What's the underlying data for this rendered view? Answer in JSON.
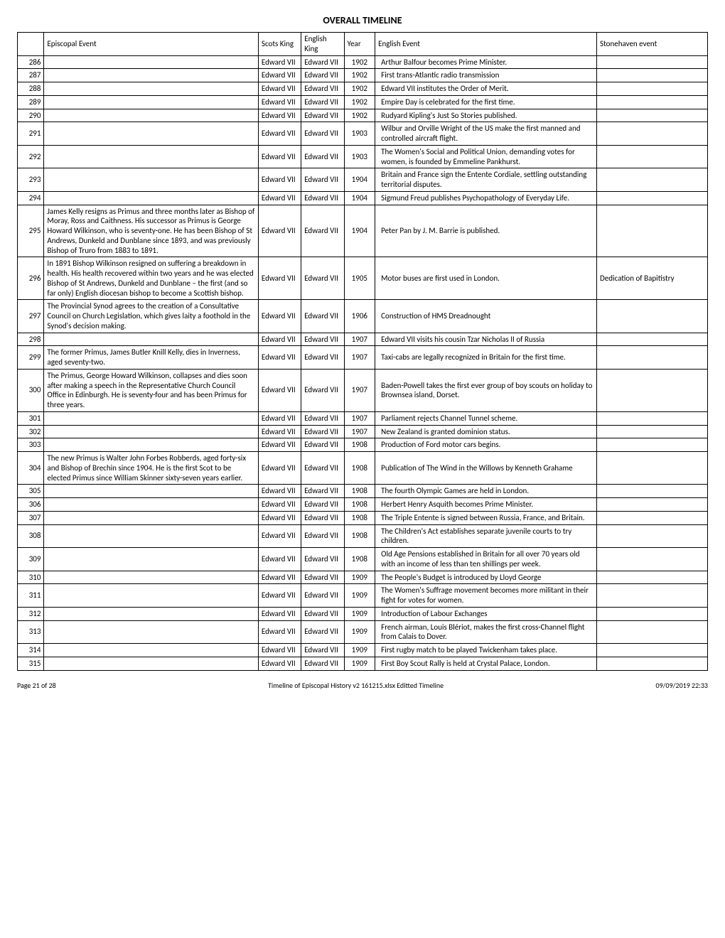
{
  "title": "OVERALL TIMELINE",
  "headers": {
    "idx": "",
    "episcopal": "Episcopal Event",
    "scots_king": "Scots King",
    "english_king": "English King",
    "year": "Year",
    "english_event": "English Event",
    "stonehaven": "Stonehaven event"
  },
  "rows": [
    {
      "n": "286",
      "ep": "",
      "sk": "Edward VII",
      "ek": "Edward VII",
      "yr": "1902",
      "ev": "Arthur Balfour becomes Prime Minister.",
      "st": ""
    },
    {
      "n": "287",
      "ep": "",
      "sk": "Edward VII",
      "ek": "Edward VII",
      "yr": "1902",
      "ev": "First trans-Atlantic radio transmission",
      "st": ""
    },
    {
      "n": "288",
      "ep": "",
      "sk": "Edward VII",
      "ek": "Edward VII",
      "yr": "1902",
      "ev": "Edward VII institutes the Order of Merit.",
      "st": ""
    },
    {
      "n": "289",
      "ep": "",
      "sk": "Edward VII",
      "ek": "Edward VII",
      "yr": "1902",
      "ev": "Empire Day is celebrated for the first time.",
      "st": ""
    },
    {
      "n": "290",
      "ep": "",
      "sk": "Edward VII",
      "ek": "Edward VII",
      "yr": "1902",
      "ev": "Rudyard Kipling's Just So Stories published.",
      "st": ""
    },
    {
      "n": "291",
      "ep": "",
      "sk": "Edward VII",
      "ek": "Edward VII",
      "yr": "1903",
      "ev": "Wilbur and Orville Wright of the US make the first manned and controlled aircraft flight.",
      "st": ""
    },
    {
      "n": "292",
      "ep": "",
      "sk": "Edward VII",
      "ek": "Edward VII",
      "yr": "1903",
      "ev": "The Women's Social and Political Union, demanding votes for women, is founded by Emmeline Pankhurst.",
      "st": ""
    },
    {
      "n": "293",
      "ep": "",
      "sk": "Edward VII",
      "ek": "Edward VII",
      "yr": "1904",
      "ev": "Britain and France sign the Entente Cordiale, settling outstanding territorial disputes.",
      "st": ""
    },
    {
      "n": "294",
      "ep": "",
      "sk": "Edward VII",
      "ek": "Edward VII",
      "yr": "1904",
      "ev": "Sigmund Freud publishes Psychopathology of Everyday Life.",
      "st": ""
    },
    {
      "n": "295",
      "ep": "James Kelly resigns as Primus and three months later as Bishop of Moray, Ross and Caithness.  His successor as Primus is George Howard Wilkinson, who is seventy-one. He has been Bishop of St Andrews, Dunkeld and Dunblane since 1893, and was previously Bishop of Truro from 1883 to 1891.",
      "sk": "Edward VII",
      "ek": "Edward VII",
      "yr": "1904",
      "ev": "Peter Pan by J. M. Barrie is published.",
      "st": ""
    },
    {
      "n": "296",
      "ep": "In 1891 Bishop Wilkinson resigned on suffering a breakdown in health.  His health recovered within two years and he was elected Bishop of St Andrews, Dunkeld and Dunblane – the first (and so far only) English diocesan bishop to become a Scottish bishop.",
      "sk": "Edward VII",
      "ek": "Edward VII",
      "yr": "1905",
      "ev": "Motor buses are first used in London.",
      "st": "Dedication of Bapitistry"
    },
    {
      "n": "297",
      "ep": "The Provincial Synod agrees to the creation of a Consultative Council on Church Legislation, which gives laity a foothold in the Synod's decision making.",
      "sk": "Edward VII",
      "ek": "Edward VII",
      "yr": "1906",
      "ev": "Construction of HMS Dreadnought",
      "st": ""
    },
    {
      "n": "298",
      "ep": "",
      "sk": "Edward VII",
      "ek": "Edward VII",
      "yr": "1907",
      "ev": "Edward VII visits his cousin Tzar Nicholas II of Russia",
      "st": ""
    },
    {
      "n": "299",
      "ep": "The former Primus, James Butler Knill Kelly, dies in Inverness, aged seventy-two.",
      "sk": "Edward VII",
      "ek": "Edward VII",
      "yr": "1907",
      "ev": "Taxi-cabs are legally recognized in Britain for the first time.",
      "st": ""
    },
    {
      "n": "300",
      "ep": "The Primus, George Howard Wilkinson, collapses and dies soon after making a speech in the Representative Church Council Office in Edinburgh. He is seventy-four and has been Primus for three years.",
      "sk": "Edward VII",
      "ek": "Edward VII",
      "yr": "1907",
      "ev": "Baden-Powell takes the first ever group of boy scouts on holiday to Brownsea island, Dorset.",
      "st": ""
    },
    {
      "n": "301",
      "ep": "",
      "sk": "Edward VII",
      "ek": "Edward VII",
      "yr": "1907",
      "ev": "Parliament rejects Channel Tunnel scheme.",
      "st": ""
    },
    {
      "n": "302",
      "ep": "",
      "sk": "Edward VII",
      "ek": "Edward VII",
      "yr": "1907",
      "ev": "New Zealand is granted dominion status.",
      "st": ""
    },
    {
      "n": "303",
      "ep": "",
      "sk": "Edward VII",
      "ek": "Edward VII",
      "yr": "1908",
      "ev": "Production of Ford motor cars begins.",
      "st": ""
    },
    {
      "n": "304",
      "ep": "The new Primus is Walter John Forbes Robberds, aged forty-six and Bishop of Brechin since 1904. He is the first Scot to be elected Primus since William Skinner sixty-seven years earlier.",
      "sk": "Edward VII",
      "ek": "Edward VII",
      "yr": "1908",
      "ev": "Publication of The Wind in the Willows by Kenneth Grahame",
      "st": ""
    },
    {
      "n": "305",
      "ep": "",
      "sk": "Edward VII",
      "ek": "Edward VII",
      "yr": "1908",
      "ev": "The fourth Olympic Games are held in London.",
      "st": ""
    },
    {
      "n": "306",
      "ep": "",
      "sk": "Edward VII",
      "ek": "Edward VII",
      "yr": "1908",
      "ev": "Herbert Henry Asquith becomes Prime Minister.",
      "st": ""
    },
    {
      "n": "307",
      "ep": "",
      "sk": "Edward VII",
      "ek": "Edward VII",
      "yr": "1908",
      "ev": "The Triple Entente is signed between Russia, France, and Britain.",
      "st": ""
    },
    {
      "n": "308",
      "ep": "",
      "sk": "Edward VII",
      "ek": "Edward VII",
      "yr": "1908",
      "ev": "The Children's Act establishes separate juvenile courts to try children.",
      "st": ""
    },
    {
      "n": "309",
      "ep": "",
      "sk": "Edward VII",
      "ek": "Edward VII",
      "yr": "1908",
      "ev": "Old Age Pensions established in Britain for all over 70 years old with an income of less than ten shillings per week.",
      "st": ""
    },
    {
      "n": "310",
      "ep": "",
      "sk": "Edward VII",
      "ek": "Edward VII",
      "yr": "1909",
      "ev": "The People's Budget is introduced by Lloyd George",
      "st": ""
    },
    {
      "n": "311",
      "ep": "",
      "sk": "Edward VII",
      "ek": "Edward VII",
      "yr": "1909",
      "ev": "The Women's Suffrage movement becomes more militant in their fight for votes for women.",
      "st": ""
    },
    {
      "n": "312",
      "ep": "",
      "sk": "Edward VII",
      "ek": "Edward VII",
      "yr": "1909",
      "ev": "Introduction of Labour Exchanges",
      "st": ""
    },
    {
      "n": "313",
      "ep": "",
      "sk": "Edward VII",
      "ek": "Edward VII",
      "yr": "1909",
      "ev": "French airman, Louis Blériot, makes the first cross-Channel flight from Calais to Dover.",
      "st": ""
    },
    {
      "n": "314",
      "ep": "",
      "sk": "Edward VII",
      "ek": "Edward VII",
      "yr": "1909",
      "ev": "First rugby match to be played Twickenham takes place.",
      "st": ""
    },
    {
      "n": "315",
      "ep": "",
      "sk": "Edward VII",
      "ek": "Edward VII",
      "yr": "1909",
      "ev": "First Boy Scout Rally is held at Crystal Palace, London.",
      "st": ""
    }
  ],
  "footer": {
    "left": "Page 21 of 28",
    "center": "Timeline of Episcopal History  v2  161215.xlsx Editted Timeline",
    "right": "09/09/2019 22:33"
  }
}
